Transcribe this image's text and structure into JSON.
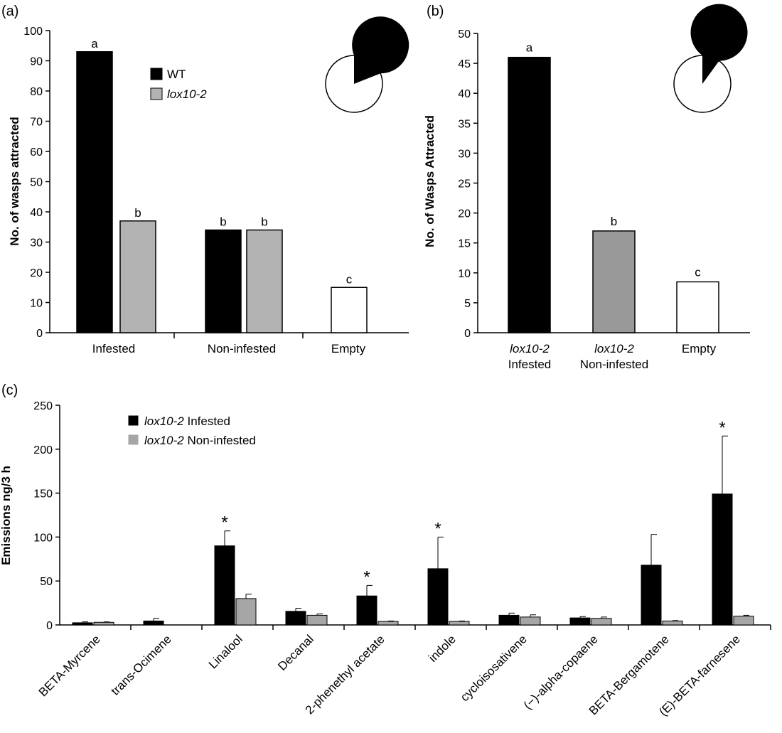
{
  "figure": {
    "panels": [
      "(a)",
      "(b)",
      "(c)"
    ]
  },
  "chart_data": [
    {
      "panel": "(a)",
      "type": "bar",
      "ylabel": "No. of wasps attracted",
      "ylim": [
        0,
        100
      ],
      "yticks": [
        0,
        10,
        20,
        30,
        40,
        50,
        60,
        70,
        80,
        90,
        100
      ],
      "legend": [
        {
          "name": "WT",
          "color": "#000000",
          "italic": false
        },
        {
          "name": "lox10-2",
          "color": "#b3b3b3",
          "italic": true
        }
      ],
      "legend_position": "top-center",
      "groups": [
        {
          "label": "Infested",
          "bars": [
            {
              "series": "WT",
              "value": 93,
              "color": "#000000",
              "letter": "a"
            },
            {
              "series": "lox10-2",
              "value": 37,
              "color": "#b3b3b3",
              "letter": "b"
            }
          ]
        },
        {
          "label": "Non-infested",
          "bars": [
            {
              "series": "WT",
              "value": 34,
              "color": "#000000",
              "letter": "b"
            },
            {
              "series": "lox10-2",
              "value": 34,
              "color": "#b3b3b3",
              "letter": "b"
            }
          ]
        },
        {
          "label": "Empty",
          "bars": [
            {
              "series": "",
              "value": 15,
              "color": "#ffffff",
              "letter": "c"
            }
          ]
        }
      ],
      "pie": {
        "label": "81%",
        "value": 81
      }
    },
    {
      "panel": "(b)",
      "type": "bar",
      "ylabel": "No. of Wasps Attracted",
      "ylim": [
        0,
        50
      ],
      "yticks": [
        0,
        5,
        10,
        15,
        20,
        25,
        30,
        35,
        40,
        45,
        50
      ],
      "categories": [
        {
          "line1": "lox10-2",
          "line2": "Infested",
          "italic1": true
        },
        {
          "line1": "lox10-2",
          "line2": "Non-infested",
          "italic1": true
        },
        {
          "line1": "Empty",
          "line2": "",
          "italic1": false
        }
      ],
      "bars": [
        {
          "value": 46,
          "color": "#000000",
          "letter": "a"
        },
        {
          "value": 17,
          "color": "#999999",
          "letter": "b"
        },
        {
          "value": 8.5,
          "color": "#ffffff",
          "letter": "c"
        }
      ],
      "pie": {
        "label": "90%",
        "value": 90
      }
    },
    {
      "panel": "(c)",
      "type": "bar",
      "ylabel": "Emissions ng/3 h",
      "ylim": [
        0,
        250
      ],
      "yticks": [
        0,
        50,
        100,
        150,
        200,
        250
      ],
      "legend": [
        {
          "italic": "lox10-2",
          "rest": " Infested",
          "color": "#000000"
        },
        {
          "italic": "lox10-2",
          "rest": "  Non-infested",
          "color": "#a6a6a6"
        }
      ],
      "legend_position": "top-left",
      "categories": [
        "BETA-Myrcene",
        "trans-Ocimene",
        "Linalool",
        "Decanal",
        "2-phenethyl acetate",
        "indole",
        "cycloisosativene",
        "(−)-alpha-copaene",
        "BETA-Bergamotene",
        "(E)-BETA-farnesene"
      ],
      "series": [
        {
          "name": "lox10-2 Infested",
          "color": "#000000",
          "values": [
            2.5,
            4.5,
            90,
            15.5,
            33,
            64,
            11,
            8,
            68,
            149
          ],
          "errors": [
            1,
            3,
            17,
            3.5,
            12,
            36,
            2.5,
            1.5,
            35,
            66
          ]
        },
        {
          "name": "lox10-2 Non-infested",
          "color": "#a6a6a6",
          "values": [
            3,
            0,
            30,
            11,
            4,
            4,
            9,
            7.5,
            4.5,
            10
          ],
          "errors": [
            0.5,
            0,
            5,
            1.5,
            0.5,
            0.5,
            2.5,
            1.5,
            0.5,
            1
          ]
        }
      ],
      "significance": [
        "",
        "",
        "*",
        "",
        "*",
        "*",
        "",
        "",
        "",
        "*"
      ]
    }
  ]
}
